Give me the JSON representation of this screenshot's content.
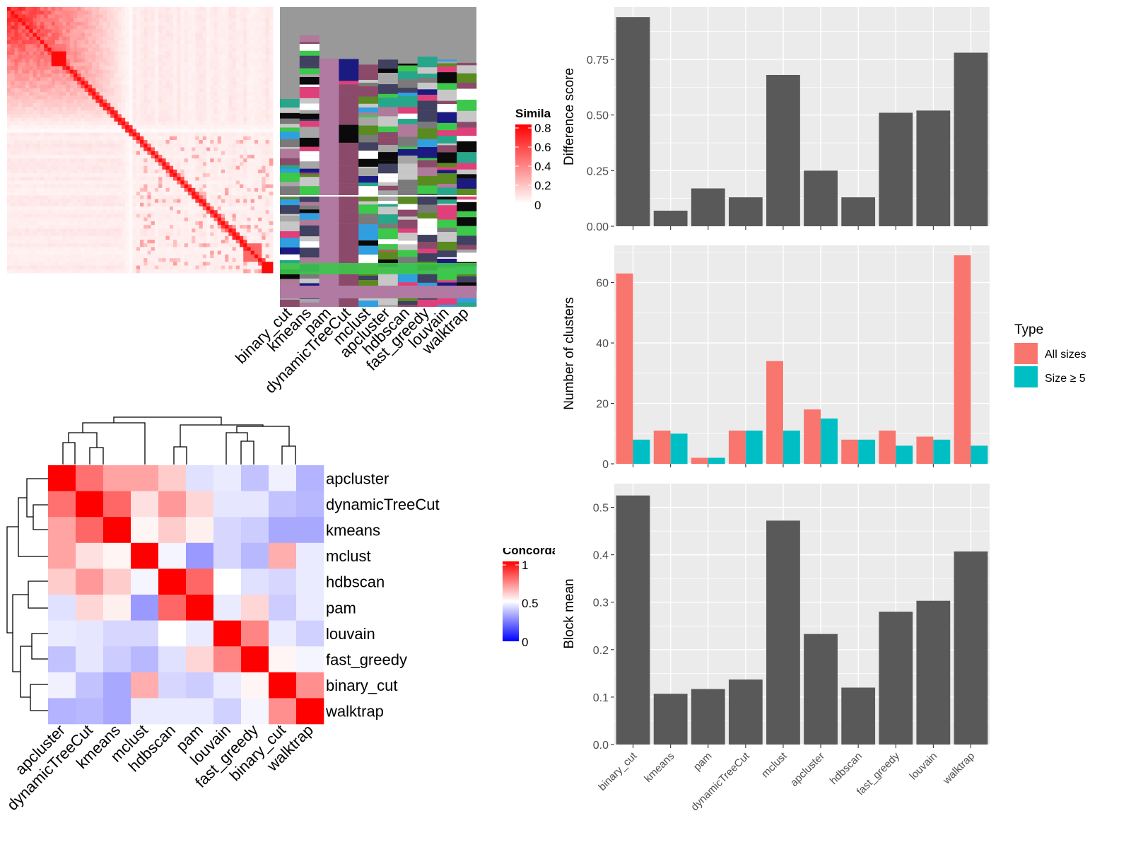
{
  "colors": {
    "bar_dark": "#595959",
    "panel_bg": "#ebebeb",
    "grid": "#ffffff",
    "all_sizes": "#f8766d",
    "size_ge5": "#00bfc4",
    "similarity_hi": "#ff0000",
    "concordance_hi": "#ff0000",
    "concordance_mid": "#ffffff",
    "concordance_lo": "#0000ff"
  },
  "similarity_heatmap": {
    "legend_title": "Similarity",
    "legend_ticks": [
      "0.8",
      "0.6",
      "0.4",
      "0.2",
      "0"
    ],
    "methods": [
      "binary_cut",
      "kmeans",
      "pam",
      "dynamicTreeCut",
      "mclust",
      "apcluster",
      "hdbscan",
      "fast_greedy",
      "louvain",
      "walktrap"
    ]
  },
  "concordance_heatmap": {
    "legend_title": "Concordance",
    "legend_ticks": [
      "1",
      "0.5",
      "0"
    ],
    "rows": [
      "apcluster",
      "dynamicTreeCut",
      "kmeans",
      "mclust",
      "hdbscan",
      "pam",
      "louvain",
      "fast_greedy",
      "binary_cut",
      "walktrap"
    ],
    "cols": [
      "apcluster",
      "dynamicTreeCut",
      "kmeans",
      "mclust",
      "hdbscan",
      "pam",
      "louvain",
      "fast_greedy",
      "binary_cut",
      "walktrap"
    ],
    "matrix": [
      [
        1.0,
        0.78,
        0.68,
        0.68,
        0.6,
        0.44,
        0.46,
        0.38,
        0.47,
        0.35
      ],
      [
        0.78,
        1.0,
        0.8,
        0.56,
        0.7,
        0.58,
        0.45,
        0.45,
        0.38,
        0.36
      ],
      [
        0.68,
        0.8,
        1.0,
        0.52,
        0.6,
        0.53,
        0.42,
        0.4,
        0.33,
        0.33
      ],
      [
        0.68,
        0.56,
        0.52,
        1.0,
        0.48,
        0.3,
        0.42,
        0.36,
        0.66,
        0.46
      ],
      [
        0.6,
        0.7,
        0.6,
        0.48,
        1.0,
        0.8,
        0.5,
        0.44,
        0.42,
        0.46
      ],
      [
        0.44,
        0.58,
        0.53,
        0.3,
        0.8,
        1.0,
        0.46,
        0.58,
        0.4,
        0.46
      ],
      [
        0.46,
        0.45,
        0.42,
        0.42,
        0.5,
        0.46,
        1.0,
        0.74,
        0.46,
        0.41
      ],
      [
        0.38,
        0.45,
        0.4,
        0.36,
        0.44,
        0.58,
        0.74,
        1.0,
        0.52,
        0.48
      ],
      [
        0.47,
        0.38,
        0.33,
        0.66,
        0.42,
        0.4,
        0.46,
        0.52,
        1.0,
        0.72
      ],
      [
        0.35,
        0.36,
        0.33,
        0.46,
        0.46,
        0.46,
        0.41,
        0.48,
        0.72,
        1.0
      ]
    ]
  },
  "chart_data": [
    {
      "type": "bar",
      "categories": [
        "binary_cut",
        "kmeans",
        "pam",
        "dynamicTreeCut",
        "mclust",
        "apcluster",
        "hdbscan",
        "fast_greedy",
        "louvain",
        "walktrap"
      ],
      "values": [
        0.94,
        0.07,
        0.17,
        0.13,
        0.68,
        0.25,
        0.13,
        0.51,
        0.52,
        0.78
      ],
      "ylabel": "Difference score",
      "ylim": [
        0,
        0.985
      ],
      "yticks": [
        0,
        0.25,
        0.5,
        0.75
      ],
      "ytick_labels": [
        "0.00",
        "0.25",
        "0.50",
        "0.75"
      ]
    },
    {
      "type": "bar",
      "categories": [
        "binary_cut",
        "kmeans",
        "pam",
        "dynamicTreeCut",
        "mclust",
        "apcluster",
        "hdbscan",
        "fast_greedy",
        "louvain",
        "walktrap"
      ],
      "series": [
        {
          "name": "All sizes",
          "values": [
            63,
            11,
            2,
            11,
            34,
            18,
            8,
            11,
            9,
            69
          ]
        },
        {
          "name": "Size ≥ 5",
          "values": [
            8,
            10,
            2,
            11,
            11,
            15,
            8,
            6,
            8,
            6
          ]
        }
      ],
      "ylabel": "Number of clusters",
      "ylim": [
        0,
        72.3
      ],
      "yticks": [
        0,
        20,
        40,
        60
      ],
      "ytick_labels": [
        "0",
        "20",
        "40",
        "60"
      ],
      "legend_title": "Type",
      "legend_position": "right"
    },
    {
      "type": "bar",
      "categories": [
        "binary_cut",
        "kmeans",
        "pam",
        "dynamicTreeCut",
        "mclust",
        "apcluster",
        "hdbscan",
        "fast_greedy",
        "louvain",
        "walktrap"
      ],
      "values": [
        0.525,
        0.107,
        0.117,
        0.137,
        0.472,
        0.233,
        0.12,
        0.28,
        0.303,
        0.407
      ],
      "ylabel": "Block mean",
      "ylim": [
        0,
        0.55
      ],
      "yticks": [
        0,
        0.1,
        0.2,
        0.3,
        0.4,
        0.5
      ],
      "ytick_labels": [
        "0.0",
        "0.1",
        "0.2",
        "0.3",
        "0.4",
        "0.5"
      ]
    }
  ]
}
